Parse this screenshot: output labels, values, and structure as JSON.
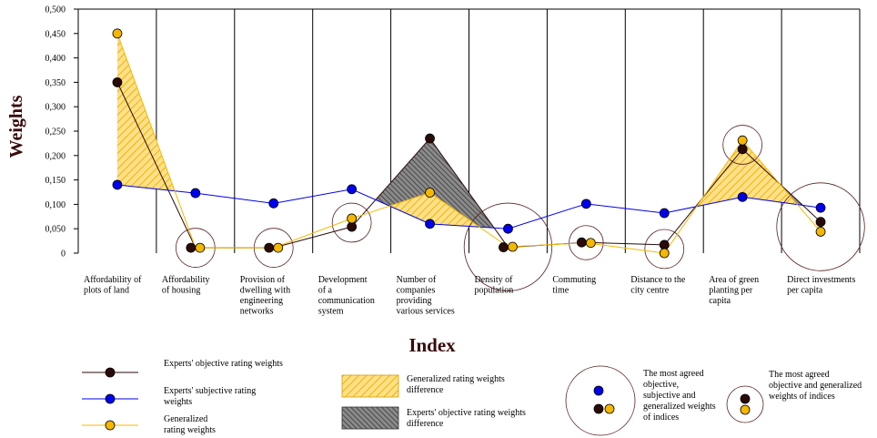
{
  "chart_data": {
    "type": "line",
    "xlabel": "Index",
    "ylabel": "Weights",
    "ylim": [
      0,
      0.5
    ],
    "y_ticks": [
      "0",
      "0,050",
      "0,100",
      "0,150",
      "0,200",
      "0,250",
      "0,300",
      "0,350",
      "0,400",
      "0,450",
      "0,500"
    ],
    "grid": "vertical",
    "categories": [
      [
        "Affordability of",
        "plots of land"
      ],
      [
        "Affordability",
        "of housing"
      ],
      [
        "Provision of",
        "dwelling with",
        "engineering",
        "networks"
      ],
      [
        "Development",
        "of a",
        "communication",
        "system"
      ],
      [
        "Number of",
        "companies",
        "providing",
        "various services"
      ],
      [
        "Density of",
        "population"
      ],
      [
        "Commuting",
        "time"
      ],
      [
        "Distance to the",
        "city centre"
      ],
      [
        "Area of green",
        "planting per",
        "capita"
      ],
      [
        "Direct investments",
        "per capita"
      ]
    ],
    "series": [
      {
        "name": "Experts' objective rating weights",
        "color": "#2b0a0a",
        "values": [
          0.35,
          0.011,
          0.011,
          0.054,
          0.235,
          0.012,
          0.022,
          0.017,
          0.213,
          0.064
        ]
      },
      {
        "name": "Experts' subjective rating weights",
        "color": "#0000ee",
        "values": [
          0.14,
          0.123,
          0.102,
          0.131,
          0.06,
          0.05,
          0.101,
          0.082,
          0.115,
          0.093
        ]
      },
      {
        "name": "Generalized rating weights",
        "color": "#f5b800",
        "values": [
          0.45,
          0.011,
          0.011,
          0.071,
          0.124,
          0.013,
          0.021,
          0.0,
          0.231,
          0.044
        ]
      }
    ],
    "circles": [
      {
        "category": 1,
        "mark_radius": 0.04
      },
      {
        "category": 2,
        "mark_radius": 0.04
      },
      {
        "category": 3,
        "mark_radius": 0.04
      },
      {
        "category": 5,
        "mark_radius": 0.09
      },
      {
        "category": 6,
        "mark_radius": 0.035
      },
      {
        "category": 7,
        "mark_radius": 0.04
      },
      {
        "category": 8,
        "mark_radius": 0.04
      },
      {
        "category": 9,
        "mark_radius": 0.09
      }
    ]
  },
  "legend": {
    "objective": "Experts' objective rating weights",
    "subjective": [
      "Experts' subjective rating",
      "weights"
    ],
    "generalized": [
      "Generalized",
      "rating weights"
    ],
    "gen_diff": [
      "Generalized rating weights",
      "difference"
    ],
    "obj_diff": [
      "Experts' objective rating weights",
      "difference"
    ],
    "agreed_all": [
      "The most agreed",
      "objective,",
      "subjective and",
      "generalized weights",
      "of indices"
    ],
    "agreed_two": [
      "The most agreed",
      "objective and generalized",
      "weights of indices"
    ]
  }
}
